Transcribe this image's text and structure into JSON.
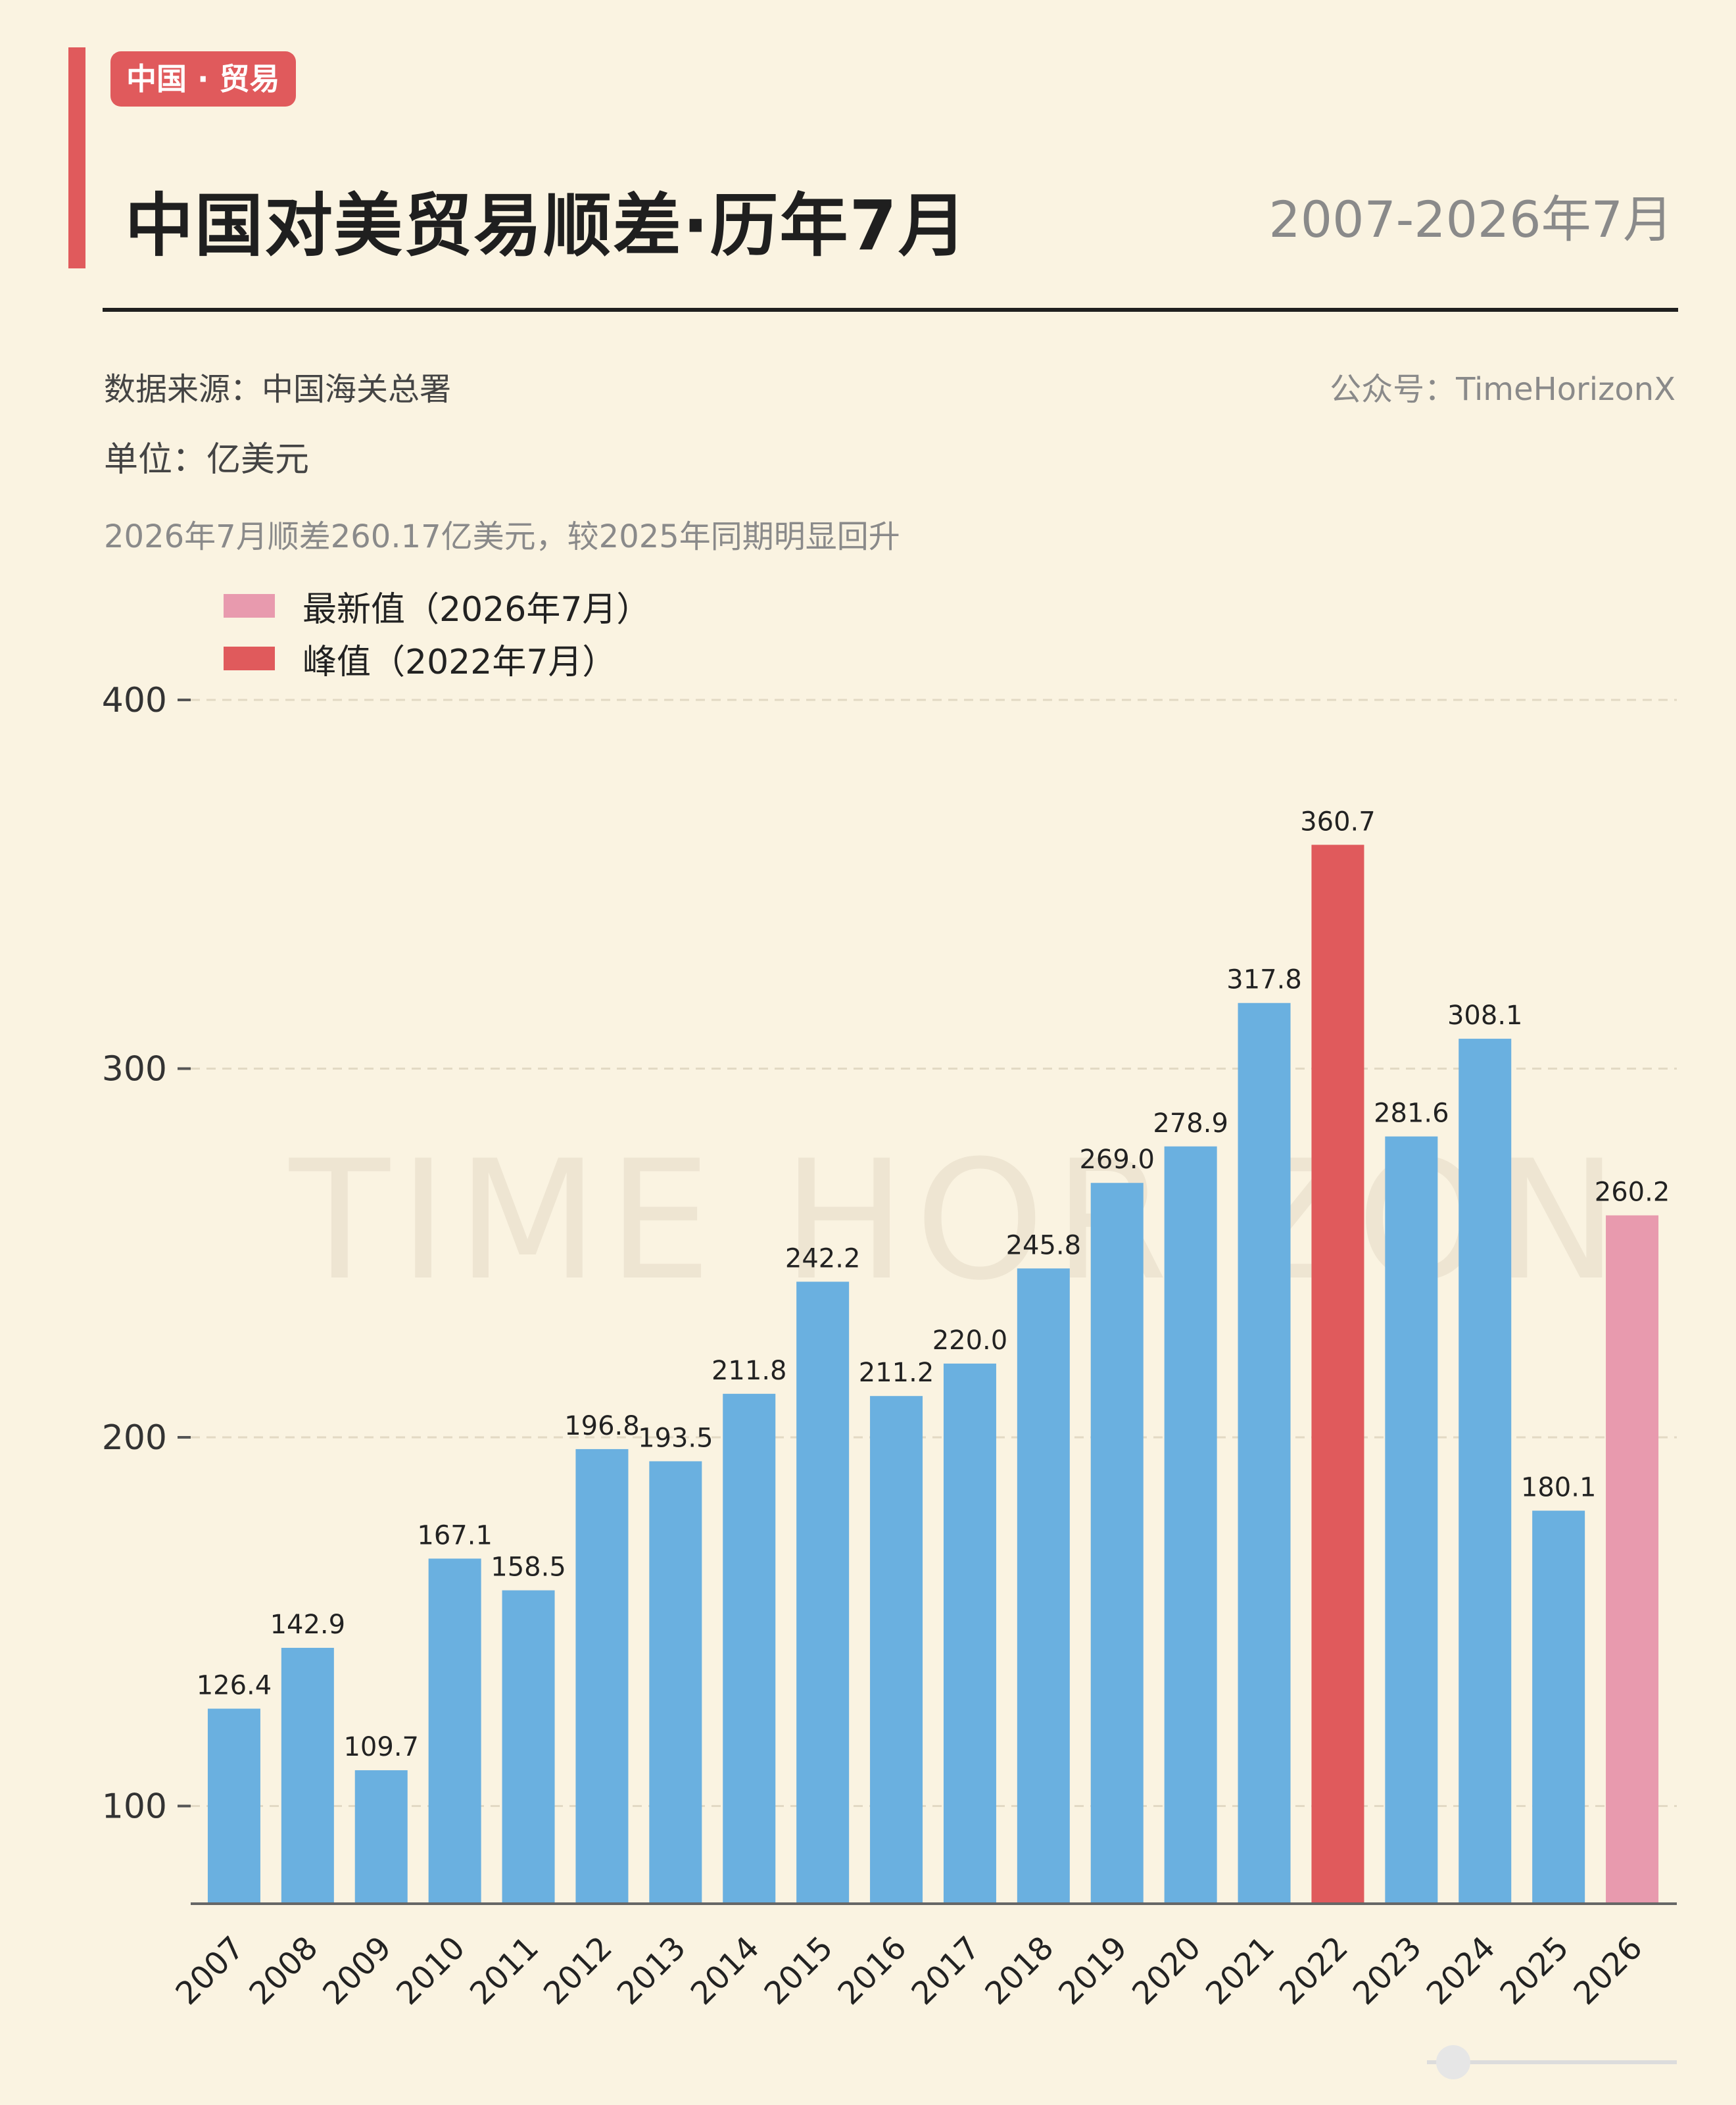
{
  "header": {
    "tag": "中国 · 贸易",
    "title": "中国对美贸易顺差·历年7月",
    "period": "2007-2026年7月"
  },
  "meta": {
    "source": "数据来源：中国海关总署",
    "account": "公众号：TimeHorizonX",
    "unit": "单位：亿美元",
    "note": "2026年7月顺差260.17亿美元，较2025年同期明显回升"
  },
  "legend": {
    "latest": "最新值（2026年7月）",
    "peak": "峰值（2022年7月）"
  },
  "watermark": "TIME HORIZON",
  "colors": {
    "normal": "#6AB0E0",
    "peak": "#E05A5C",
    "latest": "#E89AAE",
    "accent": "#E05A5C",
    "background": "#FAF3E1"
  },
  "chart_data": {
    "type": "bar",
    "categories": [
      "2007",
      "2008",
      "2009",
      "2010",
      "2011",
      "2012",
      "2013",
      "2014",
      "2015",
      "2016",
      "2017",
      "2018",
      "2019",
      "2020",
      "2021",
      "2022",
      "2023",
      "2024",
      "2025",
      "2026"
    ],
    "values": [
      126.4,
      142.9,
      109.7,
      167.1,
      158.5,
      196.8,
      193.5,
      211.8,
      242.2,
      211.2,
      220.0,
      245.8,
      269.0,
      278.9,
      317.8,
      360.7,
      281.6,
      308.1,
      180.1,
      260.2
    ],
    "labels": [
      "126.4",
      "142.9",
      "109.7",
      "167.1",
      "158.5",
      "196.8",
      "193.5",
      "211.8",
      "242.2",
      "211.2",
      "220.0",
      "245.8",
      "269.0",
      "278.9",
      "317.8",
      "360.7",
      "281.6",
      "308.1",
      "180.1",
      "260.2"
    ],
    "highlight": {
      "peak_index": 15,
      "latest_index": 19
    },
    "yticks": [
      100,
      200,
      300,
      400
    ],
    "ylim": [
      73.5,
      400
    ],
    "grid": true,
    "legend_position": "top-left"
  }
}
